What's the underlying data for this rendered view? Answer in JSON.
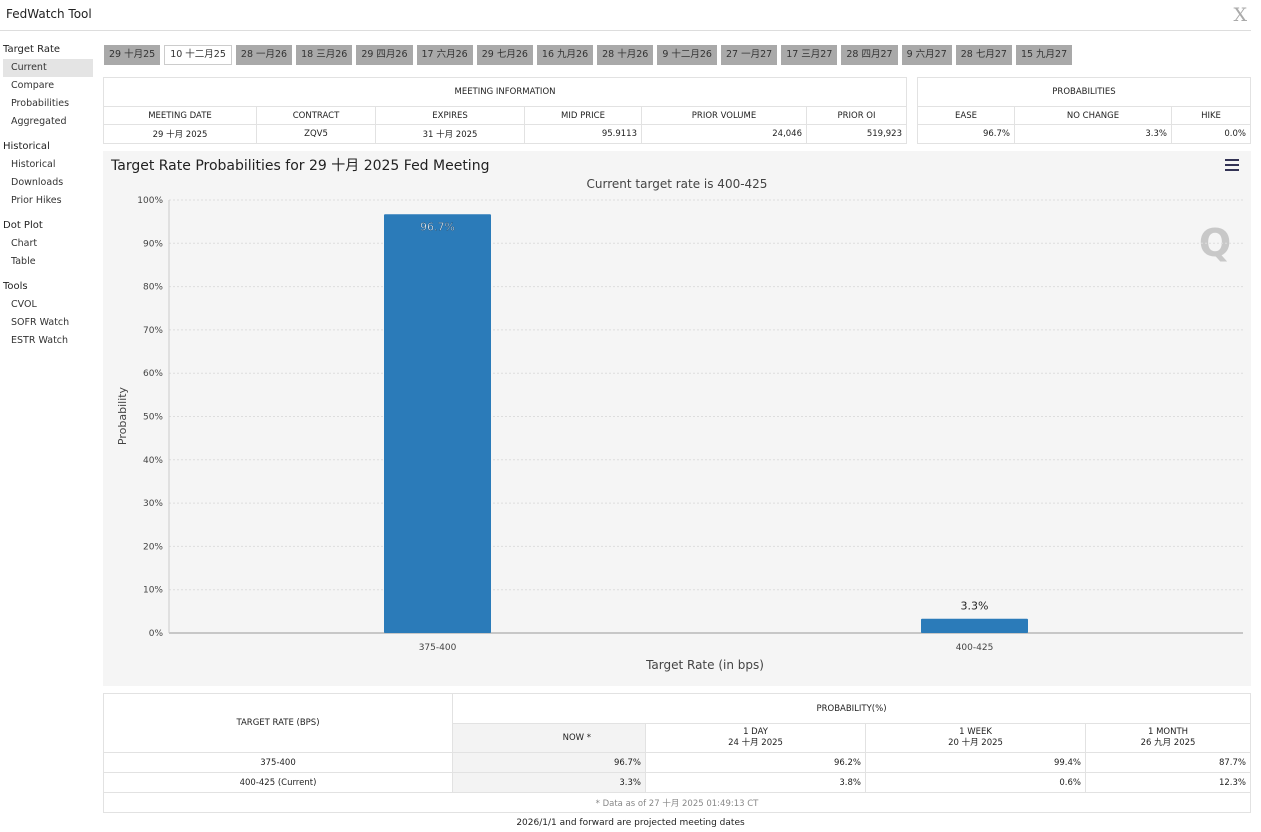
{
  "app": {
    "title": "FedWatch Tool",
    "close_label": "X"
  },
  "sidebar": {
    "groups": [
      {
        "label": "Target Rate",
        "items": [
          "Current",
          "Compare",
          "Probabilities",
          "Aggregated"
        ]
      },
      {
        "label": "Historical",
        "items": [
          "Historical",
          "Downloads",
          "Prior Hikes"
        ]
      },
      {
        "label": "Dot Plot",
        "items": [
          "Chart",
          "Table"
        ]
      },
      {
        "label": "Tools",
        "items": [
          "CVOL",
          "SOFR Watch",
          "ESTR Watch"
        ]
      }
    ]
  },
  "tabs": [
    "29 十月25",
    "10 十二月25",
    "28 一月26",
    "18 三月26",
    "29 四月26",
    "17 六月26",
    "29 七月26",
    "16 九月26",
    "28 十月26",
    "9 十二月26",
    "27 一月27",
    "17 三月27",
    "28 四月27",
    "9 六月27",
    "28 七月27",
    "15 九月27"
  ],
  "meeting_info": {
    "title": "MEETING INFORMATION",
    "headers": [
      "MEETING DATE",
      "CONTRACT",
      "EXPIRES",
      "MID PRICE",
      "PRIOR VOLUME",
      "PRIOR OI"
    ],
    "values": [
      "29 十月 2025",
      "ZQV5",
      "31 十月 2025",
      "95.9113",
      "24,046",
      "519,923"
    ]
  },
  "probabilities": {
    "title": "PROBABILITIES",
    "headers": [
      "EASE",
      "NO CHANGE",
      "HIKE"
    ],
    "values": [
      "96.7%",
      "3.3%",
      "0.0%"
    ]
  },
  "chart_data": {
    "type": "bar",
    "title": "Target Rate Probabilities for 29 十月 2025 Fed Meeting",
    "subtitle": "Current target rate is 400-425",
    "categories": [
      "375-400",
      "400-425"
    ],
    "values": [
      96.7,
      3.3
    ],
    "data_labels": [
      "96.7%",
      "3.3%"
    ],
    "xlabel": "Target Rate (in bps)",
    "ylabel": "Probability",
    "ylim": [
      0,
      100
    ],
    "yticks": [
      "0%",
      "10%",
      "20%",
      "30%",
      "40%",
      "50%",
      "60%",
      "70%",
      "80%",
      "90%",
      "100%"
    ],
    "grid": true,
    "bar_color": "#2b7bb9",
    "watermark": "Q"
  },
  "bottom_table": {
    "rate_header": "TARGET RATE (BPS)",
    "prob_header": "PROBABILITY(%)",
    "cols": [
      {
        "line1": "NOW *",
        "line2": ""
      },
      {
        "line1": "1 DAY",
        "line2": "24 十月 2025"
      },
      {
        "line1": "1 WEEK",
        "line2": "20 十月 2025"
      },
      {
        "line1": "1 MONTH",
        "line2": "26 九月 2025"
      }
    ],
    "rows": [
      {
        "rate": "375-400",
        "values": [
          "96.7%",
          "96.2%",
          "99.4%",
          "87.7%"
        ]
      },
      {
        "rate": "400-425 (Current)",
        "values": [
          "3.3%",
          "3.8%",
          "0.6%",
          "12.3%"
        ]
      }
    ],
    "data_note": "* Data as of 27 十月 2025 01:49:13 CT"
  },
  "footnote": "2026/1/1 and forward are projected meeting dates"
}
